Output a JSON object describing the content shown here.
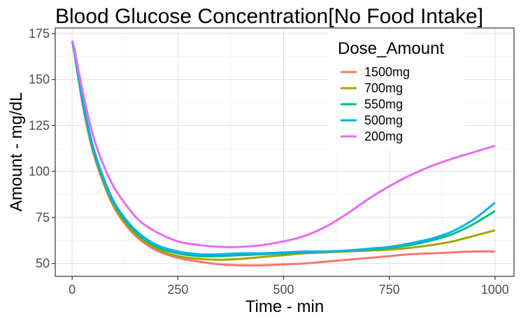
{
  "chart_data": {
    "type": "line",
    "title": "Blood Glucose Concentration[No Food Intake]",
    "xlabel": "Time - min",
    "ylabel": "Amount - mg/dL",
    "xlim": [
      -40,
      1045
    ],
    "ylim": [
      43,
      178
    ],
    "xticks": [
      0,
      250,
      500,
      750,
      1000
    ],
    "yticks": [
      50,
      75,
      100,
      125,
      150,
      175
    ],
    "grid": true,
    "legend": {
      "title": "Dose_Amount",
      "position": "top-right"
    },
    "series": [
      {
        "name": "1500mg",
        "color": "#F8766D",
        "x": [
          0,
          5,
          15,
          30,
          50,
          75,
          100,
          130,
          160,
          200,
          250,
          300,
          350,
          400,
          450,
          500,
          550,
          600,
          650,
          700,
          750,
          800,
          850,
          900,
          950,
          1000
        ],
        "y": [
          171,
          165,
          150,
          130,
          110,
          93,
          80,
          70,
          63,
          57,
          53,
          51,
          49.5,
          49,
          49,
          49.5,
          50,
          51,
          52,
          53,
          54,
          55,
          55.5,
          56,
          56.5,
          56.5
        ]
      },
      {
        "name": "700mg",
        "color": "#A3A500",
        "x": [
          0,
          5,
          15,
          30,
          50,
          75,
          100,
          130,
          160,
          200,
          250,
          300,
          350,
          400,
          450,
          500,
          550,
          600,
          650,
          700,
          750,
          800,
          850,
          900,
          950,
          1000
        ],
        "y": [
          171,
          165,
          151,
          131,
          111,
          94,
          81,
          71,
          64,
          58,
          54,
          52.5,
          52,
          52.5,
          53.5,
          54.5,
          55.5,
          56,
          56.5,
          57,
          57.5,
          58.5,
          60,
          62,
          65,
          68
        ]
      },
      {
        "name": "550mg",
        "color": "#00BF7D",
        "x": [
          0,
          5,
          15,
          30,
          50,
          75,
          100,
          130,
          160,
          200,
          250,
          300,
          350,
          400,
          450,
          500,
          550,
          600,
          650,
          700,
          750,
          800,
          850,
          900,
          950,
          1000
        ],
        "y": [
          171,
          165,
          151,
          132,
          112,
          95,
          82,
          72,
          65,
          59,
          55.5,
          54,
          54,
          54.5,
          55,
          55.5,
          56,
          56.5,
          57,
          57.5,
          58.5,
          60,
          62.5,
          66,
          71.5,
          78.5
        ]
      },
      {
        "name": "500mg",
        "color": "#00B0F6",
        "x": [
          0,
          5,
          15,
          30,
          50,
          75,
          100,
          130,
          160,
          200,
          250,
          300,
          350,
          400,
          450,
          500,
          550,
          600,
          650,
          700,
          750,
          800,
          850,
          900,
          950,
          1000
        ],
        "y": [
          171,
          166,
          152,
          133,
          113,
          96,
          83,
          73,
          66,
          60,
          56.5,
          55,
          55,
          55.5,
          55.5,
          56,
          56.5,
          56.5,
          57,
          58,
          59,
          61,
          63.5,
          67.5,
          74,
          83
        ]
      },
      {
        "name": "200mg",
        "color": "#E76BF3",
        "x": [
          0,
          5,
          15,
          30,
          50,
          75,
          100,
          130,
          160,
          200,
          250,
          300,
          350,
          400,
          450,
          500,
          550,
          600,
          650,
          700,
          750,
          800,
          850,
          900,
          950,
          1000
        ],
        "y": [
          171,
          167,
          155,
          138,
          119,
          103,
          91,
          81,
          73,
          67,
          62,
          60,
          59,
          59,
          60,
          62,
          65,
          70,
          77,
          85,
          92,
          98,
          103,
          107,
          110.5,
          114
        ]
      }
    ]
  }
}
